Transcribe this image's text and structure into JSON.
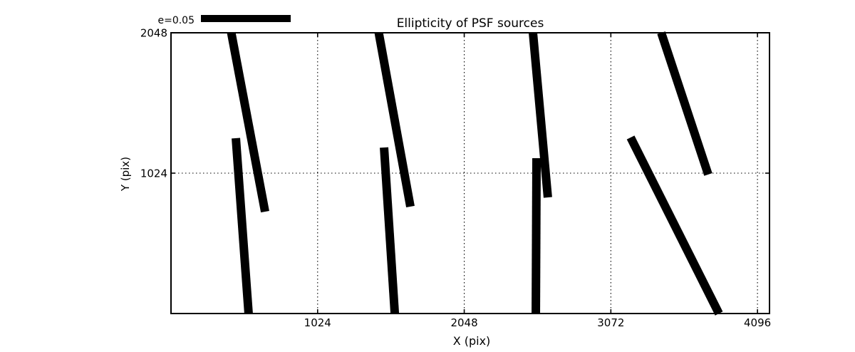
{
  "figure": {
    "background": "#ffffff",
    "ink": "#000000"
  },
  "chart_data": {
    "type": "line",
    "subtype": "ellipticity-whisker-segments",
    "title": "Ellipticity of PSF sources",
    "xlabel": "X (pix)",
    "ylabel": "Y (pix)",
    "xlim": [
      0,
      4180
    ],
    "ylim": [
      0,
      2048
    ],
    "xticks": [
      1024,
      2048,
      3072,
      4096
    ],
    "yticks": [
      1024,
      2048
    ],
    "grid": "dotted",
    "legend": {
      "label": "e=0.05",
      "position": "top-left",
      "swatch": "thick-black-bar"
    },
    "segments_units": "pixel coordinates in data space [x1,y1,x2,y2]",
    "segments": [
      [
        421,
        2048,
        657,
        743
      ],
      [
        453,
        1279,
        542,
        0
      ],
      [
        1451,
        2048,
        1672,
        780
      ],
      [
        1488,
        1211,
        1563,
        0
      ],
      [
        2528,
        2048,
        2632,
        847
      ],
      [
        2553,
        1133,
        2548,
        0
      ],
      [
        3424,
        2048,
        3752,
        1014
      ],
      [
        3210,
        1284,
        3827,
        0
      ]
    ]
  }
}
